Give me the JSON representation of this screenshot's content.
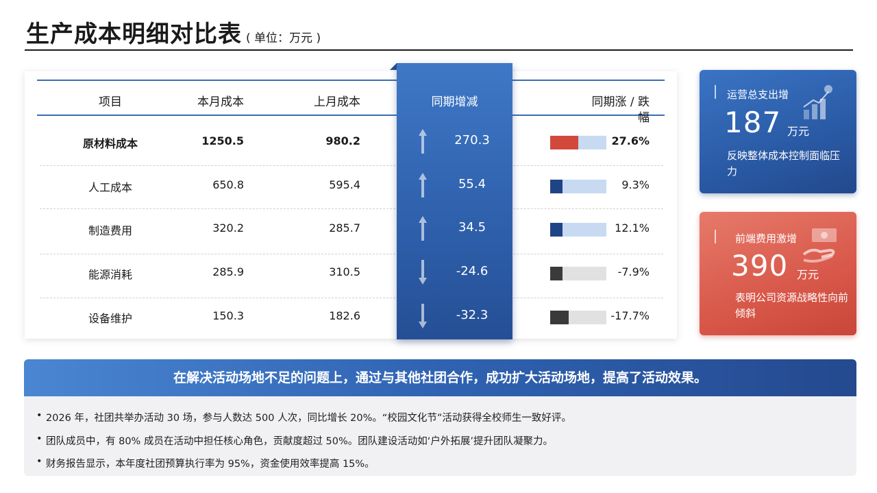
{
  "title": "生产成本明细对比表",
  "unit": "( 单位：万元 )",
  "table": {
    "headers": {
      "item": "项目",
      "current": "本月成本",
      "previous": "上月成本",
      "change": "同期增减",
      "ratio_line1": "同期涨 / 跌",
      "ratio_line2": "幅"
    },
    "rows": [
      {
        "item": "原材料成本",
        "current": "1250.5",
        "previous": "980.2",
        "change": "270.3",
        "pct": "27.6%",
        "pct_value": 27.6,
        "direction": "up",
        "bar_color": "#d2493c",
        "track_color": "#c7daf2"
      },
      {
        "item": "人工成本",
        "current": "650.8",
        "previous": "595.4",
        "change": "55.4",
        "pct": "9.3%",
        "pct_value": 9.3,
        "direction": "up",
        "bar_color": "#1f4486",
        "track_color": "#c7daf2"
      },
      {
        "item": "制造费用",
        "current": "320.2",
        "previous": "285.7",
        "change": "34.5",
        "pct": "12.1%",
        "pct_value": 12.1,
        "direction": "up",
        "bar_color": "#1f4486",
        "track_color": "#c7daf2"
      },
      {
        "item": "能源消耗",
        "current": "285.9",
        "previous": "310.5",
        "change": "-24.6",
        "pct": "-7.9%",
        "pct_value": -7.9,
        "direction": "down",
        "bar_color": "#3a3a3a",
        "track_color": "#e1e1e1"
      },
      {
        "item": "设备维护",
        "current": "150.3",
        "previous": "182.6",
        "change": "-32.3",
        "pct": "-17.7%",
        "pct_value": -17.7,
        "direction": "down",
        "bar_color": "#3a3a3a",
        "track_color": "#e1e1e1"
      }
    ]
  },
  "kpis": [
    {
      "label": "运营总支出增",
      "value": "187",
      "unit": "万元",
      "desc": "反映整体成本控制面临压力",
      "icon": "growth-chart-icon",
      "color": "#2a5aa5"
    },
    {
      "label": "前端费用激增",
      "value": "390",
      "unit": "万元",
      "desc": "表明公司资源战略性向前倾斜",
      "icon": "money-hand-icon",
      "color": "#d8584a"
    }
  ],
  "banner": "在解决活动场地不足的问题上，通过与其他社团合作，成功扩大活动场地，提高了活动效果。",
  "notes": [
    "2026 年，社团共举办活动 30 场，参与人数达 500 人次，同比增长 20%。“校园文化节”活动获得全校师生一致好评。",
    "团队成员中，有 80% 成员在活动中担任核心角色，贡献度超过 50%。团队建设活动如‘户外拓展’提升团队凝聚力。",
    "财务报告显示，本年度社团预算执行率为 95%，资金使用效率提高 15%。"
  ]
}
